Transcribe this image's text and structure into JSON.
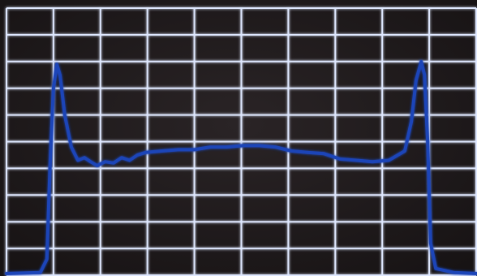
{
  "chart_data": {
    "type": "line",
    "x": [
      0,
      0.72,
      0.86,
      0.93,
      1.0,
      1.07,
      1.14,
      1.24,
      1.38,
      1.52,
      1.66,
      1.79,
      1.93,
      2.1,
      2.28,
      2.45,
      2.62,
      2.79,
      2.97,
      3.31,
      3.66,
      4.0,
      4.34,
      4.69,
      5.03,
      5.38,
      5.72,
      6.07,
      6.41,
      6.76,
      7.1,
      7.45,
      7.79,
      8.14,
      8.48,
      8.62,
      8.72,
      8.83,
      8.9,
      8.97,
      9.03,
      9.14,
      9.52,
      10
    ],
    "series": [
      {
        "color": "#1f45b8",
        "values": [
          0.06,
          0.1,
          0.6,
          4.2,
          7,
          7.9,
          7.5,
          6,
          4.8,
          4.3,
          4.4,
          4.25,
          4.1,
          4.25,
          4.2,
          4.4,
          4.3,
          4.5,
          4.6,
          4.65,
          4.7,
          4.7,
          4.8,
          4.8,
          4.85,
          4.85,
          4.8,
          4.65,
          4.6,
          4.55,
          4.35,
          4.3,
          4.25,
          4.3,
          4.65,
          5.75,
          7.3,
          8.0,
          7.5,
          4.85,
          1.2,
          0.25,
          0.1,
          0.06
        ]
      }
    ],
    "xlim": [
      0,
      10
    ],
    "ylim": [
      0,
      10
    ],
    "xticks": [
      0,
      1,
      2,
      3,
      4,
      5,
      6,
      7,
      8,
      9,
      10
    ],
    "yticks": [
      0,
      1,
      2,
      3,
      4,
      5,
      6,
      7,
      8,
      9,
      10
    ],
    "grid": true
  }
}
